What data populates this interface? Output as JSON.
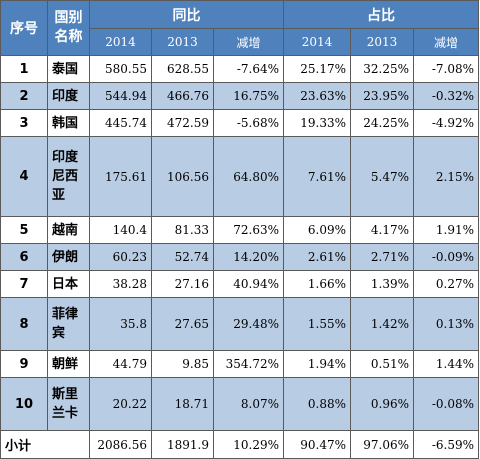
{
  "header": {
    "index": "序号",
    "country_line1": "国别",
    "country_line2": "名称",
    "group_yoy": "同比",
    "group_share": "占比",
    "year_2014": "2014",
    "year_2013": "2013",
    "change": "减增"
  },
  "rows": [
    {
      "idx": "1",
      "name": [
        "泰国"
      ],
      "y2014": "580.55",
      "y2013": "628.55",
      "d1": "-7.64%",
      "s2014": "25.17%",
      "s2013": "32.25%",
      "d2": "-7.08%"
    },
    {
      "idx": "2",
      "name": [
        "印度"
      ],
      "y2014": "544.94",
      "y2013": "466.76",
      "d1": "16.75%",
      "s2014": "23.63%",
      "s2013": "23.95%",
      "d2": "-0.32%"
    },
    {
      "idx": "3",
      "name": [
        "韩国"
      ],
      "y2014": "445.74",
      "y2013": "472.59",
      "d1": "-5.68%",
      "s2014": "19.33%",
      "s2013": "24.25%",
      "d2": "-4.92%"
    },
    {
      "idx": "4",
      "name": [
        "印度",
        "尼西",
        "亚"
      ],
      "y2014": "175.61",
      "y2013": "106.56",
      "d1": "64.80%",
      "s2014": "7.61%",
      "s2013": "5.47%",
      "d2": "2.15%"
    },
    {
      "idx": "5",
      "name": [
        "越南"
      ],
      "y2014": "140.4",
      "y2013": "81.33",
      "d1": "72.63%",
      "s2014": "6.09%",
      "s2013": "4.17%",
      "d2": "1.91%"
    },
    {
      "idx": "6",
      "name": [
        "伊朗"
      ],
      "y2014": "60.23",
      "y2013": "52.74",
      "d1": "14.20%",
      "s2014": "2.61%",
      "s2013": "2.71%",
      "d2": "-0.09%"
    },
    {
      "idx": "7",
      "name": [
        "日本"
      ],
      "y2014": "38.28",
      "y2013": "27.16",
      "d1": "40.94%",
      "s2014": "1.66%",
      "s2013": "1.39%",
      "d2": "0.27%"
    },
    {
      "idx": "8",
      "name": [
        "菲律",
        "宾"
      ],
      "y2014": "35.8",
      "y2013": "27.65",
      "d1": "29.48%",
      "s2014": "1.55%",
      "s2013": "1.42%",
      "d2": "0.13%"
    },
    {
      "idx": "9",
      "name": [
        "朝鲜"
      ],
      "y2014": "44.79",
      "y2013": "9.85",
      "d1": "354.72%",
      "s2014": "1.94%",
      "s2013": "0.51%",
      "d2": "1.44%"
    },
    {
      "idx": "10",
      "name": [
        "斯里",
        "兰卡"
      ],
      "y2014": "20.22",
      "y2013": "18.71",
      "d1": "8.07%",
      "s2014": "0.88%",
      "s2013": "0.96%",
      "d2": "-0.08%"
    }
  ],
  "total": {
    "label": "小计",
    "y2014": "2086.56",
    "y2013": "1891.9",
    "d1": "10.29%",
    "s2014": "90.47%",
    "s2013": "97.06%",
    "d2": "-6.59%"
  }
}
